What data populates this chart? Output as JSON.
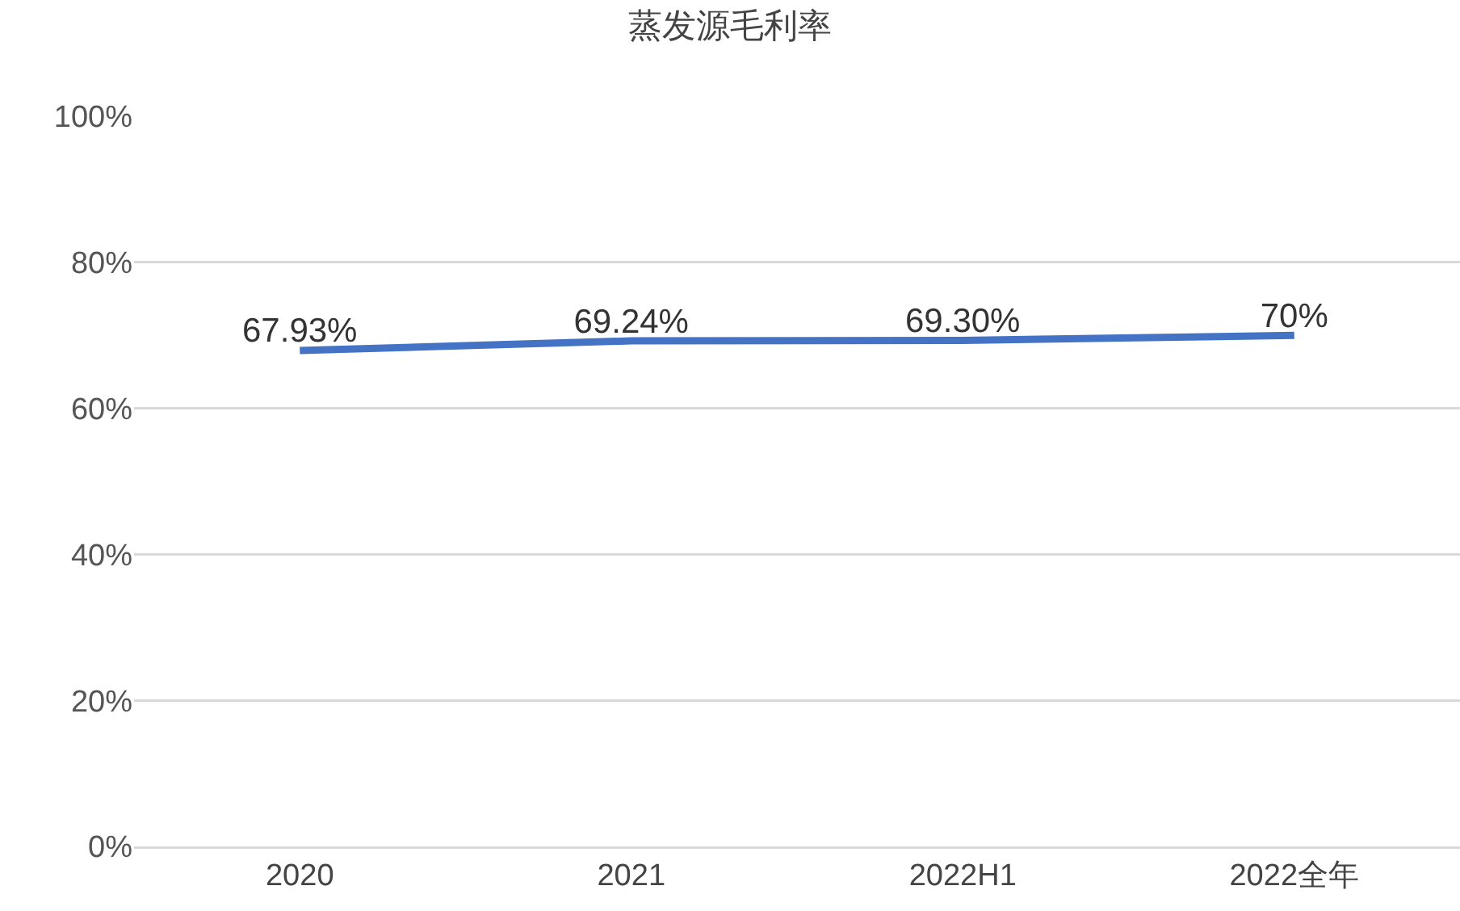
{
  "chart_data": {
    "type": "line",
    "title": "蒸发源毛利率",
    "categories": [
      "2020",
      "2021",
      "2022H1",
      "2022全年"
    ],
    "series": [
      {
        "color": "#4472c4",
        "values": [
          67.93,
          69.24,
          69.3,
          70
        ],
        "value_labels": [
          "67.93%",
          "69.24%",
          "69.30%",
          "70%"
        ]
      }
    ],
    "ylim": [
      0,
      100
    ],
    "yticks": [
      {
        "value": 0,
        "label": "0%"
      },
      {
        "value": 20,
        "label": "20%"
      },
      {
        "value": 40,
        "label": "40%"
      },
      {
        "value": 60,
        "label": "60%"
      },
      {
        "value": 80,
        "label": "80%"
      },
      {
        "value": 100,
        "label": "100%"
      }
    ],
    "grid": "y",
    "marker": "none",
    "line_style": "solid"
  }
}
